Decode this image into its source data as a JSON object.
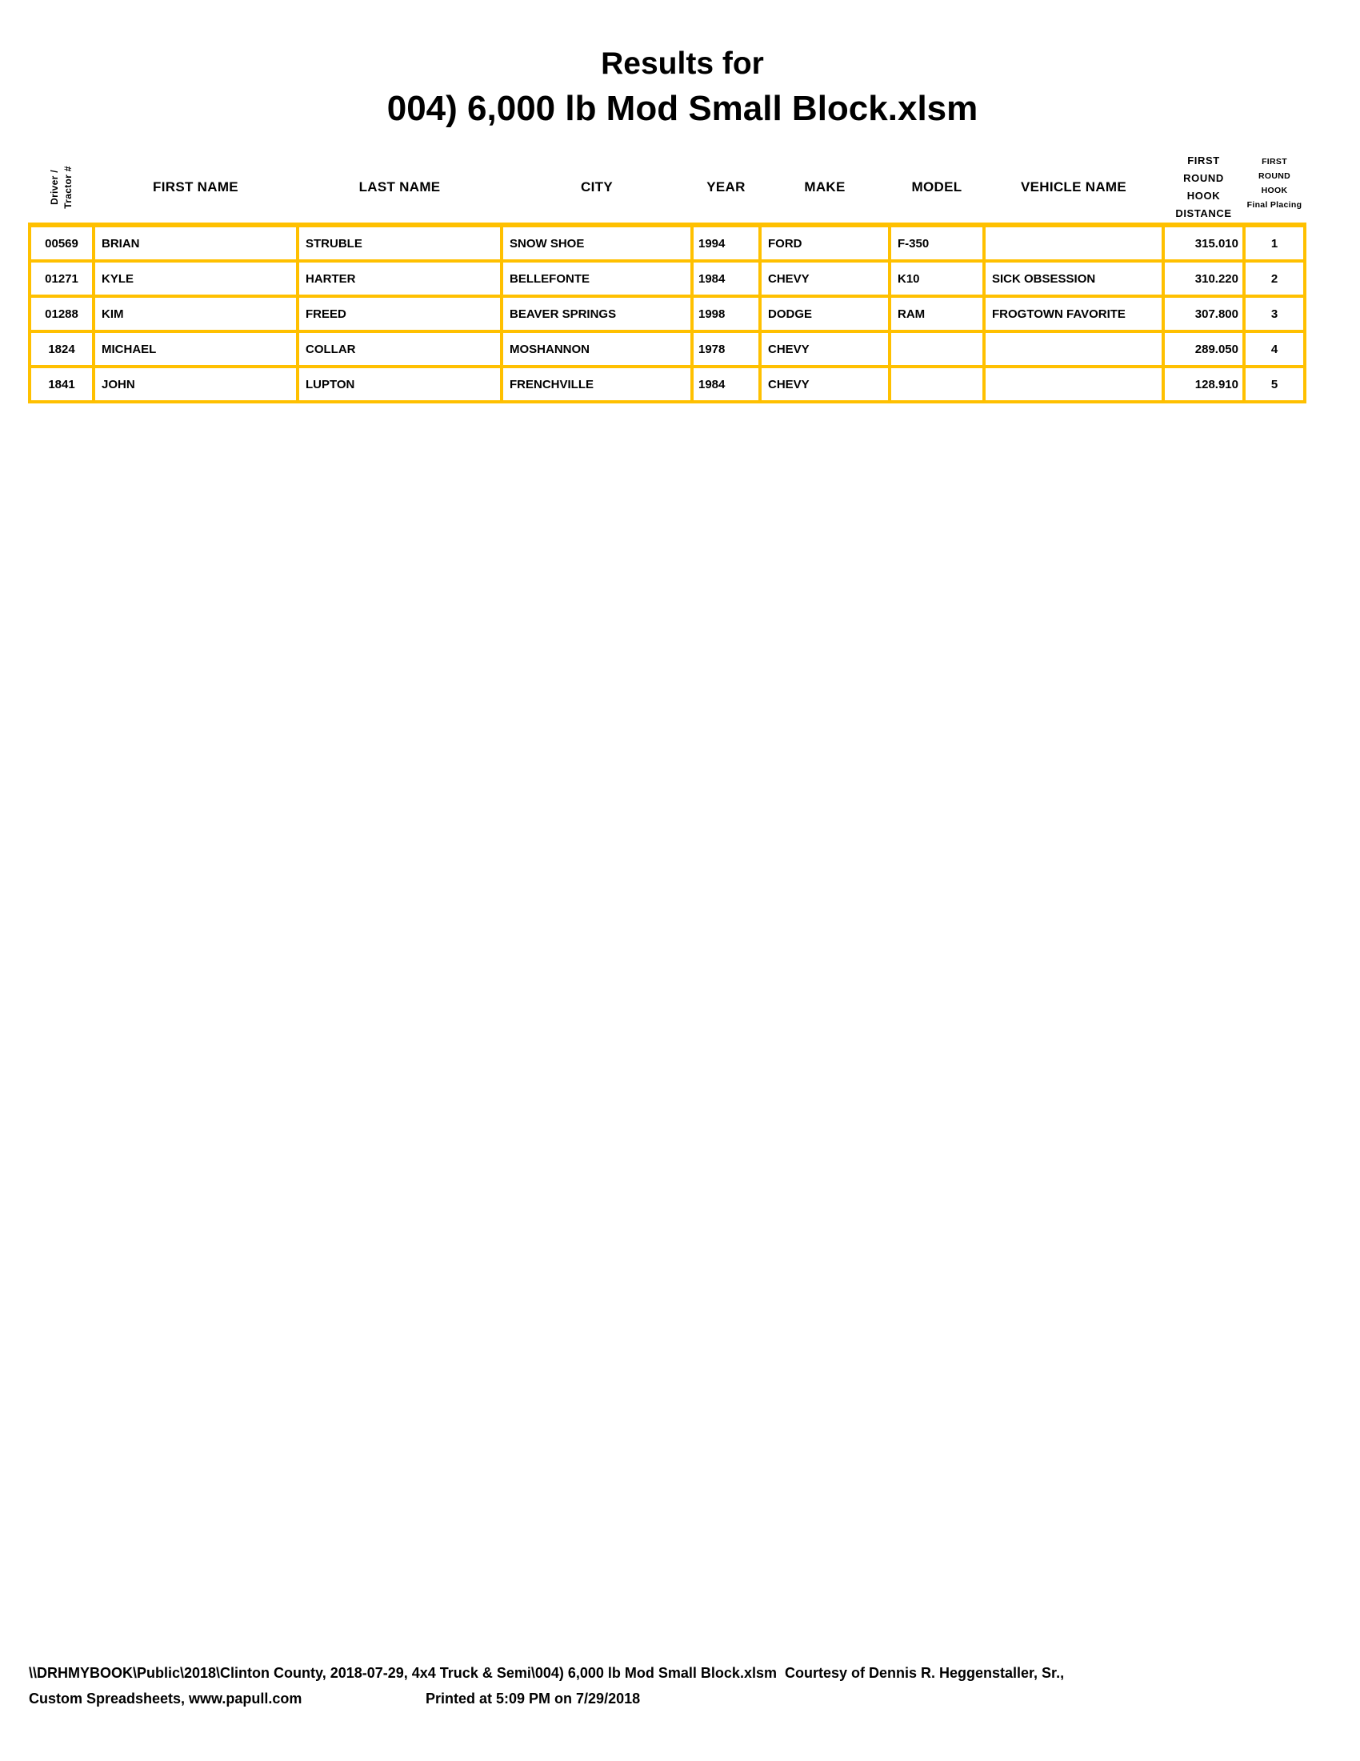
{
  "title": {
    "line1": "Results for",
    "line2": "004) 6,000 lb Mod Small Block.xlsm"
  },
  "colors": {
    "border_gold": "#FFC000",
    "text": "#000000",
    "background": "#FFFFFF"
  },
  "table": {
    "headers": {
      "driver_line1": "Driver /",
      "driver_line2": "Tractor #",
      "first_name": "FIRST NAME",
      "last_name": "LAST NAME",
      "city": "CITY",
      "year": "YEAR",
      "make": "MAKE",
      "model": "MODEL",
      "vehicle_name": "VEHICLE NAME",
      "distance_lines": [
        "FIRST",
        "ROUND",
        "HOOK",
        "DISTANCE"
      ],
      "placing_lines": [
        "FIRST ROUND",
        "HOOK",
        "Final Placing"
      ]
    },
    "rows": [
      {
        "driver": "00569",
        "first": "BRIAN",
        "last": "STRUBLE",
        "city": "SNOW SHOE",
        "year": "1994",
        "make": "FORD",
        "model": "F-350",
        "vehicle": "",
        "distance": "315.010",
        "placing": "1"
      },
      {
        "driver": "01271",
        "first": "KYLE",
        "last": "HARTER",
        "city": "BELLEFONTE",
        "year": "1984",
        "make": "CHEVY",
        "model": "K10",
        "vehicle": "SICK OBSESSION",
        "distance": "310.220",
        "placing": "2"
      },
      {
        "driver": "01288",
        "first": "KIM",
        "last": "FREED",
        "city": "BEAVER SPRINGS",
        "year": "1998",
        "make": "DODGE",
        "model": "RAM",
        "vehicle": "FROGTOWN FAVORITE",
        "distance": "307.800",
        "placing": "3"
      },
      {
        "driver": "1824",
        "first": "MICHAEL",
        "last": "COLLAR",
        "city": "MOSHANNON",
        "year": "1978",
        "make": "CHEVY",
        "model": "",
        "vehicle": "",
        "distance": "289.050",
        "placing": "4"
      },
      {
        "driver": "1841",
        "first": "JOHN",
        "last": "LUPTON",
        "city": "FRENCHVILLE",
        "year": "1984",
        "make": "CHEVY",
        "model": "",
        "vehicle": "",
        "distance": "128.910",
        "placing": "5"
      }
    ]
  },
  "footer": {
    "line1": "\\\\DRHMYBOOK\\Public\\2018\\Clinton County, 2018-07-29, 4x4 Truck & Semi\\004) 6,000 lb Mod Small Block.xlsm  Courtesy of Dennis R. Heggenstaller, Sr.,",
    "line2_left": "Custom Spreadsheets, www.papull.com",
    "line2_right": "Printed at 5:09 PM on 7/29/2018"
  }
}
